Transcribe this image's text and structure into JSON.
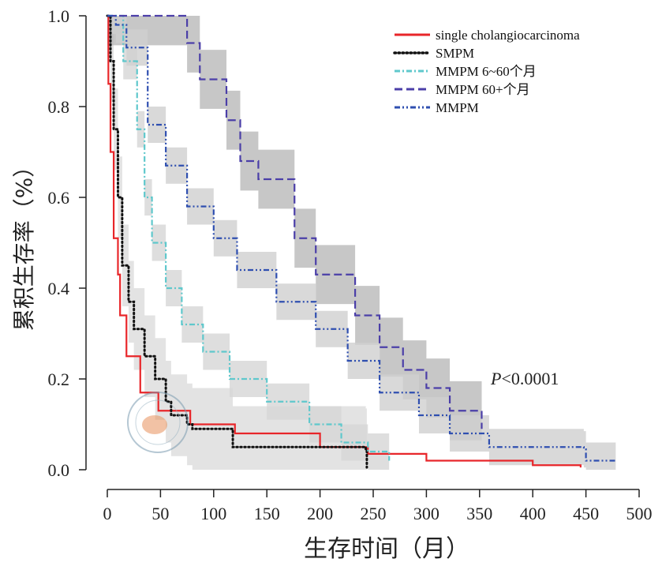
{
  "chart_data": {
    "type": "line",
    "subtype": "kaplan-meier",
    "xlabel": "生存时间（月）",
    "ylabel": "累积生存率（%）",
    "xlim": [
      0,
      500
    ],
    "ylim": [
      0,
      1.0
    ],
    "xticks": [
      "0",
      "50",
      "100",
      "150",
      "200",
      "250",
      "300",
      "350",
      "400",
      "450",
      "500"
    ],
    "yticks": [
      "0.0",
      "0.2",
      "0.4",
      "0.6",
      "0.8",
      "1.0"
    ],
    "grid": false,
    "legend_position": "top-right",
    "annotation": {
      "p_label": "P",
      "p_value": "<0.0001"
    },
    "series": [
      {
        "name": "single cholangiocarcinoma",
        "color": "#e8262a",
        "dash": "solid",
        "ci_halfwidth": 0,
        "x": [
          0,
          1,
          3,
          6,
          10,
          12,
          18,
          31,
          48,
          78,
          120,
          200,
          245,
          300,
          400,
          445
        ],
        "y": [
          1.0,
          0.85,
          0.7,
          0.51,
          0.43,
          0.34,
          0.25,
          0.17,
          0.13,
          0.1,
          0.08,
          0.05,
          0.035,
          0.02,
          0.01,
          0.005
        ]
      },
      {
        "name": "SMPM",
        "color": "#111111",
        "dash": "dotted",
        "ci_halfwidth": 0.09,
        "x": [
          0,
          3,
          6,
          10,
          14,
          20,
          25,
          35,
          45,
          55,
          60,
          75,
          80,
          118,
          243,
          244
        ],
        "y": [
          1.0,
          0.9,
          0.75,
          0.6,
          0.45,
          0.37,
          0.31,
          0.25,
          0.2,
          0.15,
          0.12,
          0.1,
          0.09,
          0.05,
          0.045,
          0.005
        ]
      },
      {
        "name": "MMPM 6~60个月",
        "color": "#5fc8cc",
        "dash": "dashdot",
        "ci_halfwidth": 0.04,
        "x": [
          0,
          5,
          15,
          28,
          35,
          42,
          55,
          70,
          90,
          115,
          150,
          190,
          220,
          245,
          265
        ],
        "y": [
          1.0,
          1.0,
          0.9,
          0.75,
          0.6,
          0.5,
          0.4,
          0.32,
          0.26,
          0.2,
          0.15,
          0.1,
          0.06,
          0.04,
          0.02
        ]
      },
      {
        "name": "MMPM 60+个月",
        "color": "#4b3fa8",
        "dash": "dashed",
        "ci_halfwidth": 0.065,
        "x": [
          0,
          65,
          75,
          87,
          112,
          125,
          142,
          176,
          196,
          233,
          256,
          278,
          300,
          322,
          352
        ],
        "y": [
          1.0,
          1.0,
          0.94,
          0.86,
          0.77,
          0.68,
          0.64,
          0.51,
          0.43,
          0.34,
          0.27,
          0.22,
          0.18,
          0.13,
          0.09
        ]
      },
      {
        "name": "MMPM",
        "color": "#2f4fb0",
        "dash": "dashdotdot",
        "ci_halfwidth": 0.04,
        "x": [
          0,
          8,
          18,
          38,
          55,
          75,
          100,
          122,
          159,
          196,
          226,
          256,
          293,
          322,
          359,
          448,
          450,
          478
        ],
        "y": [
          1.0,
          0.98,
          0.93,
          0.76,
          0.67,
          0.58,
          0.51,
          0.44,
          0.37,
          0.31,
          0.24,
          0.17,
          0.12,
          0.08,
          0.05,
          0.045,
          0.02,
          0.02
        ]
      }
    ]
  }
}
